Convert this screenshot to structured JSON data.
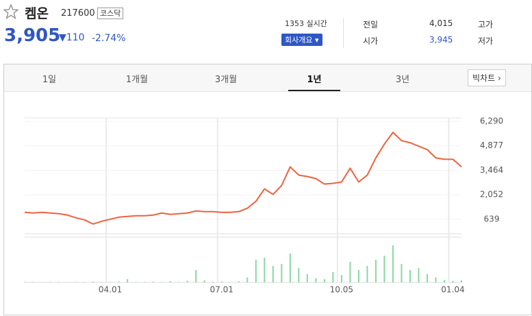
{
  "header": {
    "name": "켐온",
    "code": "217600",
    "market": "코스닥",
    "price": "3,905",
    "change": "110",
    "change_pct": "-2.74%",
    "time": "1353 실시간",
    "button": "회사개요",
    "info": [
      [
        "전일",
        "4,015",
        "고가"
      ],
      [
        "시가",
        "3,945",
        "저가"
      ]
    ]
  },
  "tabs": {
    "items": [
      "1일",
      "1개월",
      "3개월",
      "1년",
      "3년"
    ],
    "active": 3,
    "big_chart": "빅차트"
  },
  "chart_data": {
    "type": "line",
    "color": "#f0603c",
    "volume_color": "#86d9a0",
    "categories": [
      null,
      null,
      null,
      null,
      null,
      null,
      null,
      null,
      null,
      null,
      "04.01",
      null,
      null,
      null,
      null,
      null,
      null,
      null,
      null,
      null,
      null,
      null,
      null,
      "07.01",
      null,
      null,
      null,
      null,
      null,
      null,
      null,
      null,
      null,
      null,
      null,
      null,
      null,
      "10.05",
      null,
      null,
      null,
      null,
      null,
      null,
      null,
      null,
      null,
      null,
      null,
      null,
      "01.04",
      null
    ],
    "values": [
      1036,
      997,
      1036,
      997,
      957,
      877,
      718,
      599,
      360,
      519,
      638,
      758,
      798,
      837,
      837,
      877,
      997,
      917,
      957,
      997,
      1116,
      1076,
      1076,
      1036,
      1036,
      1076,
      1275,
      1673,
      2390,
      2071,
      2589,
      3663,
      3186,
      3106,
      2987,
      2668,
      2708,
      2788,
      3584,
      2788,
      3186,
      4181,
      4977,
      5653,
      5176,
      5056,
      4857,
      4658,
      4181,
      4101,
      4101,
      3663
    ],
    "volume": [
      1,
      1,
      0,
      1,
      1,
      0,
      1,
      1,
      2,
      1,
      1,
      2,
      8,
      1,
      1,
      2,
      1,
      3,
      1,
      4,
      30,
      5,
      2,
      2,
      1,
      3,
      12,
      55,
      60,
      40,
      45,
      70,
      35,
      20,
      10,
      8,
      25,
      18,
      50,
      30,
      40,
      55,
      65,
      90,
      45,
      30,
      35,
      20,
      12,
      6,
      4,
      5
    ],
    "volume_lim": [
      0,
      100
    ],
    "ylim": [
      -200,
      6490
    ],
    "yticks": [
      {
        "value": 639,
        "label": "639"
      },
      {
        "value": 2052,
        "label": "2,052"
      },
      {
        "value": 3464,
        "label": "3,464"
      },
      {
        "value": 4877,
        "label": "4,877"
      },
      {
        "value": 6290,
        "label": "6,290"
      }
    ],
    "grid": true
  }
}
